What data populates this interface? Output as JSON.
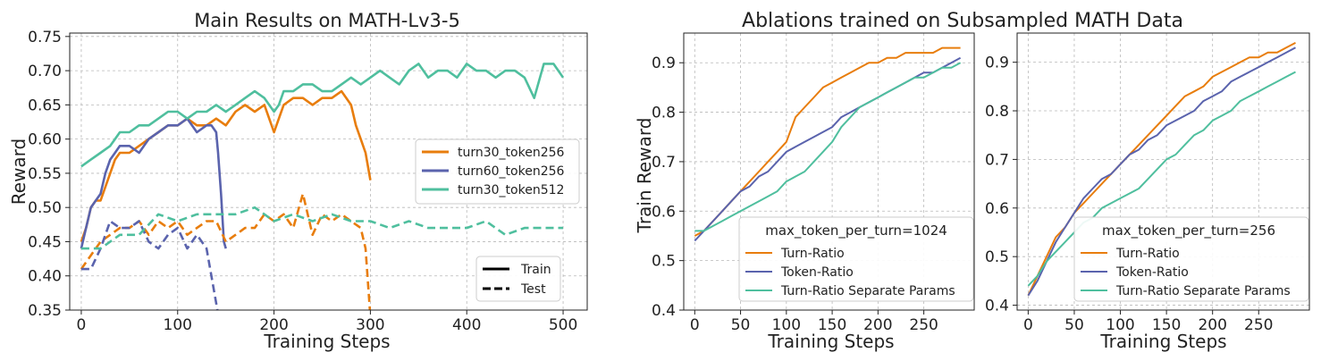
{
  "colors": {
    "orange": "#e87d0d",
    "blue": "#5a63ad",
    "teal": "#4fbf9e",
    "grid": "#b8b8b8"
  },
  "figure_title_right": "Ablations trained on Subsampled MATH Data",
  "chart_data": [
    {
      "type": "line",
      "title": "Main Results on MATH-Lv3-5",
      "xlabel": "Training Steps",
      "ylabel": "Reward",
      "xlim": [
        -12,
        525
      ],
      "ylim": [
        0.35,
        0.755
      ],
      "xticks": [
        0,
        100,
        200,
        300,
        400,
        500
      ],
      "yticks": [
        0.35,
        0.4,
        0.45,
        0.5,
        0.55,
        0.6,
        0.65,
        0.7,
        0.75
      ],
      "ytick_labels": [
        "0.35",
        "0.40",
        "0.45",
        "0.50",
        "0.55",
        "0.60",
        "0.65",
        "0.70",
        "0.75"
      ],
      "grid": true,
      "legend": {
        "location": "center-right",
        "entries": [
          "turn30_token256",
          "turn60_token256",
          "turn30_token512"
        ]
      },
      "style_legend": {
        "location": "bottom-right",
        "entries": [
          {
            "label": "Train",
            "dash": "solid"
          },
          {
            "label": "Test",
            "dash": "dashed"
          }
        ]
      },
      "series": [
        {
          "name": "turn30_token256",
          "color": "orange",
          "dash": "solid",
          "x": [
            0,
            5,
            10,
            15,
            20,
            25,
            30,
            35,
            40,
            45,
            50,
            60,
            70,
            80,
            90,
            100,
            110,
            120,
            130,
            140,
            150,
            160,
            170,
            180,
            190,
            200,
            205,
            210,
            220,
            230,
            240,
            250,
            260,
            270,
            280,
            285,
            290,
            295,
            300
          ],
          "y": [
            0.45,
            0.47,
            0.5,
            0.51,
            0.51,
            0.53,
            0.55,
            0.57,
            0.58,
            0.58,
            0.58,
            0.59,
            0.6,
            0.61,
            0.62,
            0.62,
            0.63,
            0.62,
            0.62,
            0.63,
            0.62,
            0.64,
            0.65,
            0.64,
            0.65,
            0.61,
            0.63,
            0.65,
            0.66,
            0.66,
            0.65,
            0.66,
            0.66,
            0.67,
            0.65,
            0.62,
            0.6,
            0.58,
            0.54
          ]
        },
        {
          "name": "turn60_token256",
          "color": "blue",
          "dash": "solid",
          "x": [
            0,
            5,
            10,
            15,
            20,
            25,
            30,
            35,
            40,
            50,
            60,
            70,
            80,
            90,
            100,
            110,
            120,
            130,
            135,
            140,
            142,
            145,
            148,
            150
          ],
          "y": [
            0.44,
            0.47,
            0.5,
            0.51,
            0.52,
            0.55,
            0.57,
            0.58,
            0.59,
            0.59,
            0.58,
            0.6,
            0.61,
            0.62,
            0.62,
            0.63,
            0.61,
            0.62,
            0.62,
            0.61,
            0.58,
            0.52,
            0.45,
            0.44
          ]
        },
        {
          "name": "turn30_token512",
          "color": "teal",
          "dash": "solid",
          "x": [
            0,
            10,
            20,
            30,
            40,
            50,
            60,
            70,
            80,
            90,
            100,
            110,
            120,
            130,
            140,
            150,
            160,
            170,
            180,
            190,
            200,
            205,
            210,
            220,
            230,
            240,
            250,
            260,
            270,
            280,
            290,
            300,
            310,
            320,
            330,
            340,
            350,
            360,
            370,
            380,
            390,
            400,
            410,
            420,
            430,
            440,
            450,
            460,
            470,
            480,
            490,
            500
          ],
          "y": [
            0.56,
            0.57,
            0.58,
            0.59,
            0.61,
            0.61,
            0.62,
            0.62,
            0.63,
            0.64,
            0.64,
            0.63,
            0.64,
            0.64,
            0.65,
            0.64,
            0.65,
            0.66,
            0.67,
            0.66,
            0.64,
            0.65,
            0.67,
            0.67,
            0.68,
            0.68,
            0.67,
            0.67,
            0.68,
            0.69,
            0.68,
            0.69,
            0.7,
            0.69,
            0.68,
            0.7,
            0.71,
            0.69,
            0.7,
            0.7,
            0.69,
            0.71,
            0.7,
            0.7,
            0.69,
            0.7,
            0.7,
            0.69,
            0.66,
            0.71,
            0.71,
            0.69
          ]
        },
        {
          "name": "turn30_token256",
          "color": "orange",
          "dash": "dashed",
          "x": [
            0,
            10,
            20,
            30,
            40,
            50,
            60,
            70,
            80,
            90,
            100,
            110,
            120,
            130,
            140,
            150,
            160,
            170,
            180,
            190,
            200,
            210,
            220,
            230,
            240,
            250,
            260,
            270,
            280,
            290,
            295,
            300
          ],
          "y": [
            0.41,
            0.43,
            0.45,
            0.46,
            0.47,
            0.47,
            0.48,
            0.46,
            0.48,
            0.47,
            0.48,
            0.46,
            0.47,
            0.48,
            0.48,
            0.45,
            0.46,
            0.47,
            0.47,
            0.49,
            0.48,
            0.49,
            0.47,
            0.52,
            0.46,
            0.49,
            0.48,
            0.49,
            0.48,
            0.47,
            0.44,
            0.34
          ]
        },
        {
          "name": "turn60_token256",
          "color": "blue",
          "dash": "dashed",
          "x": [
            0,
            10,
            20,
            30,
            40,
            50,
            60,
            70,
            80,
            90,
            100,
            110,
            120,
            130,
            135,
            140,
            145
          ],
          "y": [
            0.41,
            0.41,
            0.44,
            0.48,
            0.47,
            0.47,
            0.48,
            0.45,
            0.44,
            0.46,
            0.47,
            0.44,
            0.46,
            0.44,
            0.4,
            0.36,
            0.32
          ]
        },
        {
          "name": "turn30_token512",
          "color": "teal",
          "dash": "dashed",
          "x": [
            0,
            20,
            40,
            60,
            80,
            100,
            120,
            140,
            160,
            180,
            200,
            220,
            240,
            260,
            280,
            300,
            320,
            340,
            360,
            380,
            400,
            420,
            440,
            460,
            480,
            500
          ],
          "y": [
            0.44,
            0.44,
            0.46,
            0.46,
            0.49,
            0.48,
            0.49,
            0.49,
            0.49,
            0.5,
            0.48,
            0.49,
            0.48,
            0.49,
            0.48,
            0.48,
            0.47,
            0.48,
            0.47,
            0.47,
            0.47,
            0.48,
            0.46,
            0.47,
            0.47,
            0.47
          ]
        }
      ]
    },
    {
      "type": "line",
      "title": "",
      "xlabel": "Training Steps",
      "ylabel": "Train Reward",
      "xlim": [
        -12,
        305
      ],
      "ylim": [
        0.4,
        0.96
      ],
      "xticks": [
        0,
        50,
        100,
        150,
        200,
        250
      ],
      "yticks": [
        0.4,
        0.5,
        0.6,
        0.7,
        0.8,
        0.9
      ],
      "ytick_labels": [
        "0.4",
        "0.5",
        "0.6",
        "0.7",
        "0.8",
        "0.9"
      ],
      "grid": true,
      "legend": {
        "location": "bottom-right",
        "title": "max_token_per_turn=1024",
        "entries": [
          "Turn-Ratio",
          "Token-Ratio",
          "Turn-Ratio Separate Params"
        ]
      },
      "series": [
        {
          "name": "Turn-Ratio",
          "color": "orange",
          "x": [
            0,
            10,
            20,
            30,
            40,
            50,
            60,
            70,
            80,
            90,
            100,
            110,
            120,
            130,
            140,
            150,
            160,
            170,
            180,
            190,
            200,
            210,
            220,
            230,
            240,
            250,
            260,
            270,
            280,
            290
          ],
          "y": [
            0.55,
            0.56,
            0.58,
            0.6,
            0.62,
            0.64,
            0.66,
            0.68,
            0.7,
            0.72,
            0.74,
            0.79,
            0.81,
            0.83,
            0.85,
            0.86,
            0.87,
            0.88,
            0.89,
            0.9,
            0.9,
            0.91,
            0.91,
            0.92,
            0.92,
            0.92,
            0.92,
            0.93,
            0.93,
            0.93
          ]
        },
        {
          "name": "Token-Ratio",
          "color": "blue",
          "x": [
            0,
            10,
            20,
            30,
            40,
            50,
            60,
            70,
            80,
            90,
            100,
            110,
            120,
            130,
            140,
            150,
            160,
            170,
            180,
            190,
            200,
            210,
            220,
            230,
            240,
            250,
            260,
            270,
            280,
            290
          ],
          "y": [
            0.54,
            0.56,
            0.58,
            0.6,
            0.62,
            0.64,
            0.65,
            0.67,
            0.68,
            0.7,
            0.72,
            0.73,
            0.74,
            0.75,
            0.76,
            0.77,
            0.79,
            0.8,
            0.81,
            0.82,
            0.83,
            0.84,
            0.85,
            0.86,
            0.87,
            0.88,
            0.88,
            0.89,
            0.9,
            0.91
          ]
        },
        {
          "name": "Turn-Ratio Separate Params",
          "color": "teal",
          "x": [
            0,
            10,
            20,
            30,
            40,
            50,
            60,
            70,
            80,
            90,
            100,
            110,
            120,
            130,
            140,
            150,
            160,
            170,
            180,
            190,
            200,
            210,
            220,
            230,
            240,
            250,
            260,
            270,
            280,
            290
          ],
          "y": [
            0.56,
            0.56,
            0.57,
            0.58,
            0.59,
            0.6,
            0.61,
            0.62,
            0.63,
            0.64,
            0.66,
            0.67,
            0.68,
            0.7,
            0.72,
            0.74,
            0.77,
            0.79,
            0.81,
            0.82,
            0.83,
            0.84,
            0.85,
            0.86,
            0.87,
            0.87,
            0.88,
            0.89,
            0.89,
            0.9
          ]
        }
      ]
    },
    {
      "type": "line",
      "title": "",
      "xlabel": "Training Steps",
      "ylabel": "",
      "xlim": [
        -12,
        305
      ],
      "ylim": [
        0.39,
        0.96
      ],
      "xticks": [
        0,
        50,
        100,
        150,
        200,
        250
      ],
      "yticks": [
        0.4,
        0.5,
        0.6,
        0.7,
        0.8,
        0.9
      ],
      "ytick_labels": [
        "0.4",
        "0.5",
        "0.6",
        "0.7",
        "0.8",
        "0.9"
      ],
      "grid": true,
      "legend": {
        "location": "bottom-right",
        "title": "max_token_per_turn=256",
        "entries": [
          "Turn-Ratio",
          "Token-Ratio",
          "Turn-Ratio Separate Params"
        ]
      },
      "series": [
        {
          "name": "Turn-Ratio",
          "color": "orange",
          "x": [
            0,
            10,
            20,
            30,
            40,
            50,
            60,
            70,
            80,
            90,
            100,
            110,
            120,
            130,
            140,
            150,
            160,
            170,
            180,
            190,
            200,
            210,
            220,
            230,
            240,
            250,
            260,
            270,
            280,
            290
          ],
          "y": [
            0.42,
            0.46,
            0.5,
            0.54,
            0.56,
            0.59,
            0.61,
            0.63,
            0.65,
            0.67,
            0.69,
            0.71,
            0.73,
            0.75,
            0.77,
            0.79,
            0.81,
            0.83,
            0.84,
            0.85,
            0.87,
            0.88,
            0.89,
            0.9,
            0.91,
            0.91,
            0.92,
            0.92,
            0.93,
            0.94
          ]
        },
        {
          "name": "Token-Ratio",
          "color": "blue",
          "x": [
            0,
            10,
            20,
            30,
            40,
            50,
            60,
            70,
            80,
            90,
            100,
            110,
            120,
            130,
            140,
            150,
            160,
            170,
            180,
            190,
            200,
            210,
            220,
            230,
            240,
            250,
            260,
            270,
            280,
            290
          ],
          "y": [
            0.42,
            0.45,
            0.49,
            0.53,
            0.56,
            0.59,
            0.62,
            0.64,
            0.66,
            0.67,
            0.69,
            0.71,
            0.72,
            0.74,
            0.75,
            0.77,
            0.78,
            0.79,
            0.8,
            0.82,
            0.83,
            0.84,
            0.86,
            0.87,
            0.88,
            0.89,
            0.9,
            0.91,
            0.92,
            0.93
          ]
        },
        {
          "name": "Turn-Ratio Separate Params",
          "color": "teal",
          "x": [
            0,
            10,
            20,
            30,
            40,
            50,
            60,
            70,
            80,
            90,
            100,
            110,
            120,
            130,
            140,
            150,
            160,
            170,
            180,
            190,
            200,
            210,
            220,
            230,
            240,
            250,
            260,
            270,
            280,
            290
          ],
          "y": [
            0.44,
            0.46,
            0.49,
            0.51,
            0.53,
            0.55,
            0.57,
            0.58,
            0.6,
            0.61,
            0.62,
            0.63,
            0.64,
            0.66,
            0.68,
            0.7,
            0.71,
            0.73,
            0.75,
            0.76,
            0.78,
            0.79,
            0.8,
            0.82,
            0.83,
            0.84,
            0.85,
            0.86,
            0.87,
            0.88
          ]
        }
      ]
    }
  ]
}
